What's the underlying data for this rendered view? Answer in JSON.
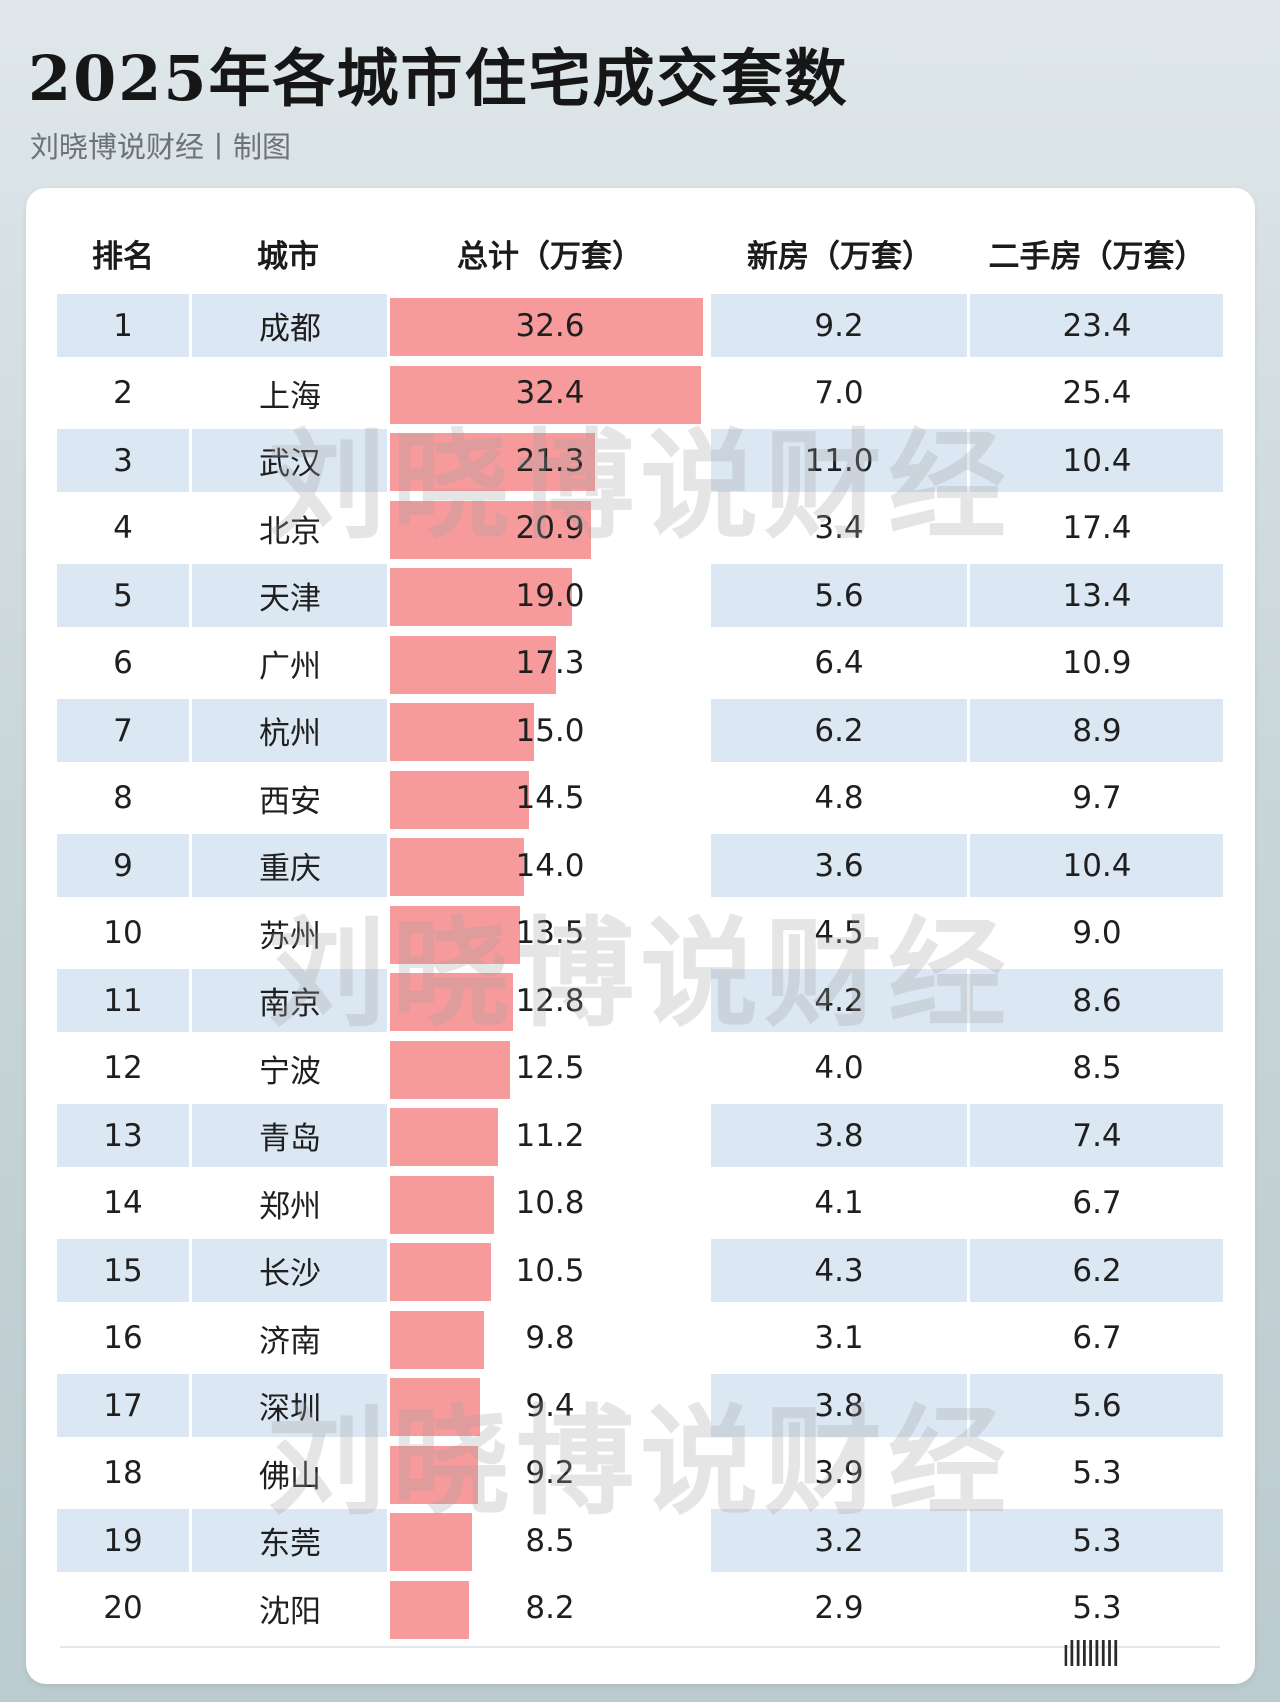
{
  "header": {
    "title": "2025年各城市住宅成交套数",
    "subtitle": "刘晓博说财经丨制图"
  },
  "table": {
    "columns": [
      "排名",
      "城市",
      "总计（万套）",
      "新房（万套）",
      "二手房（万套）"
    ]
  },
  "watermark": "刘晓博说财经",
  "footer": {
    "mark": "ꞁǀǀǀǀǀǀǀǀ"
  },
  "colors": {
    "bar": "#f79a9c",
    "row_alt": "#dbe8f3",
    "card": "#ffffff"
  },
  "chart_data": {
    "type": "table",
    "title": "2025年各城市住宅成交套数",
    "subtitle": "刘晓博说财经丨制图",
    "bar_column": "总计（万套）",
    "rows": [
      {
        "rank": "1",
        "city": "成都",
        "total": 32.6,
        "new": 9.2,
        "second": 23.4,
        "total_text": "32.6",
        "new_text": "9.2",
        "second_text": "23.4"
      },
      {
        "rank": "2",
        "city": "上海",
        "total": 32.4,
        "new": 7.0,
        "second": 25.4,
        "total_text": "32.4",
        "new_text": "7.0",
        "second_text": "25.4"
      },
      {
        "rank": "3",
        "city": "武汉",
        "total": 21.3,
        "new": 11.0,
        "second": 10.4,
        "total_text": "21.3",
        "new_text": "11.0",
        "second_text": "10.4"
      },
      {
        "rank": "4",
        "city": "北京",
        "total": 20.9,
        "new": 3.4,
        "second": 17.4,
        "total_text": "20.9",
        "new_text": "3.4",
        "second_text": "17.4"
      },
      {
        "rank": "5",
        "city": "天津",
        "total": 19.0,
        "new": 5.6,
        "second": 13.4,
        "total_text": "19.0",
        "new_text": "5.6",
        "second_text": "13.4"
      },
      {
        "rank": "6",
        "city": "广州",
        "total": 17.3,
        "new": 6.4,
        "second": 10.9,
        "total_text": "17.3",
        "new_text": "6.4",
        "second_text": "10.9"
      },
      {
        "rank": "7",
        "city": "杭州",
        "total": 15.0,
        "new": 6.2,
        "second": 8.9,
        "total_text": "15.0",
        "new_text": "6.2",
        "second_text": "8.9"
      },
      {
        "rank": "8",
        "city": "西安",
        "total": 14.5,
        "new": 4.8,
        "second": 9.7,
        "total_text": "14.5",
        "new_text": "4.8",
        "second_text": "9.7"
      },
      {
        "rank": "9",
        "city": "重庆",
        "total": 14.0,
        "new": 3.6,
        "second": 10.4,
        "total_text": "14.0",
        "new_text": "3.6",
        "second_text": "10.4"
      },
      {
        "rank": "10",
        "city": "苏州",
        "total": 13.5,
        "new": 4.5,
        "second": 9.0,
        "total_text": "13.5",
        "new_text": "4.5",
        "second_text": "9.0"
      },
      {
        "rank": "11",
        "city": "南京",
        "total": 12.8,
        "new": 4.2,
        "second": 8.6,
        "total_text": "12.8",
        "new_text": "4.2",
        "second_text": "8.6"
      },
      {
        "rank": "12",
        "city": "宁波",
        "total": 12.5,
        "new": 4.0,
        "second": 8.5,
        "total_text": "12.5",
        "new_text": "4.0",
        "second_text": "8.5"
      },
      {
        "rank": "13",
        "city": "青岛",
        "total": 11.2,
        "new": 3.8,
        "second": 7.4,
        "total_text": "11.2",
        "new_text": "3.8",
        "second_text": "7.4"
      },
      {
        "rank": "14",
        "city": "郑州",
        "total": 10.8,
        "new": 4.1,
        "second": 6.7,
        "total_text": "10.8",
        "new_text": "4.1",
        "second_text": "6.7"
      },
      {
        "rank": "15",
        "city": "长沙",
        "total": 10.5,
        "new": 4.3,
        "second": 6.2,
        "total_text": "10.5",
        "new_text": "4.3",
        "second_text": "6.2"
      },
      {
        "rank": "16",
        "city": "济南",
        "total": 9.8,
        "new": 3.1,
        "second": 6.7,
        "total_text": "9.8",
        "new_text": "3.1",
        "second_text": "6.7"
      },
      {
        "rank": "17",
        "city": "深圳",
        "total": 9.4,
        "new": 3.8,
        "second": 5.6,
        "total_text": "9.4",
        "new_text": "3.8",
        "second_text": "5.6"
      },
      {
        "rank": "18",
        "city": "佛山",
        "total": 9.2,
        "new": 3.9,
        "second": 5.3,
        "total_text": "9.2",
        "new_text": "3.9",
        "second_text": "5.3"
      },
      {
        "rank": "19",
        "city": "东莞",
        "total": 8.5,
        "new": 3.2,
        "second": 5.3,
        "total_text": "8.5",
        "new_text": "3.2",
        "second_text": "5.3"
      },
      {
        "rank": "20",
        "city": "沈阳",
        "total": 8.2,
        "new": 2.9,
        "second": 5.3,
        "total_text": "8.2",
        "new_text": "2.9",
        "second_text": "5.3"
      }
    ]
  }
}
